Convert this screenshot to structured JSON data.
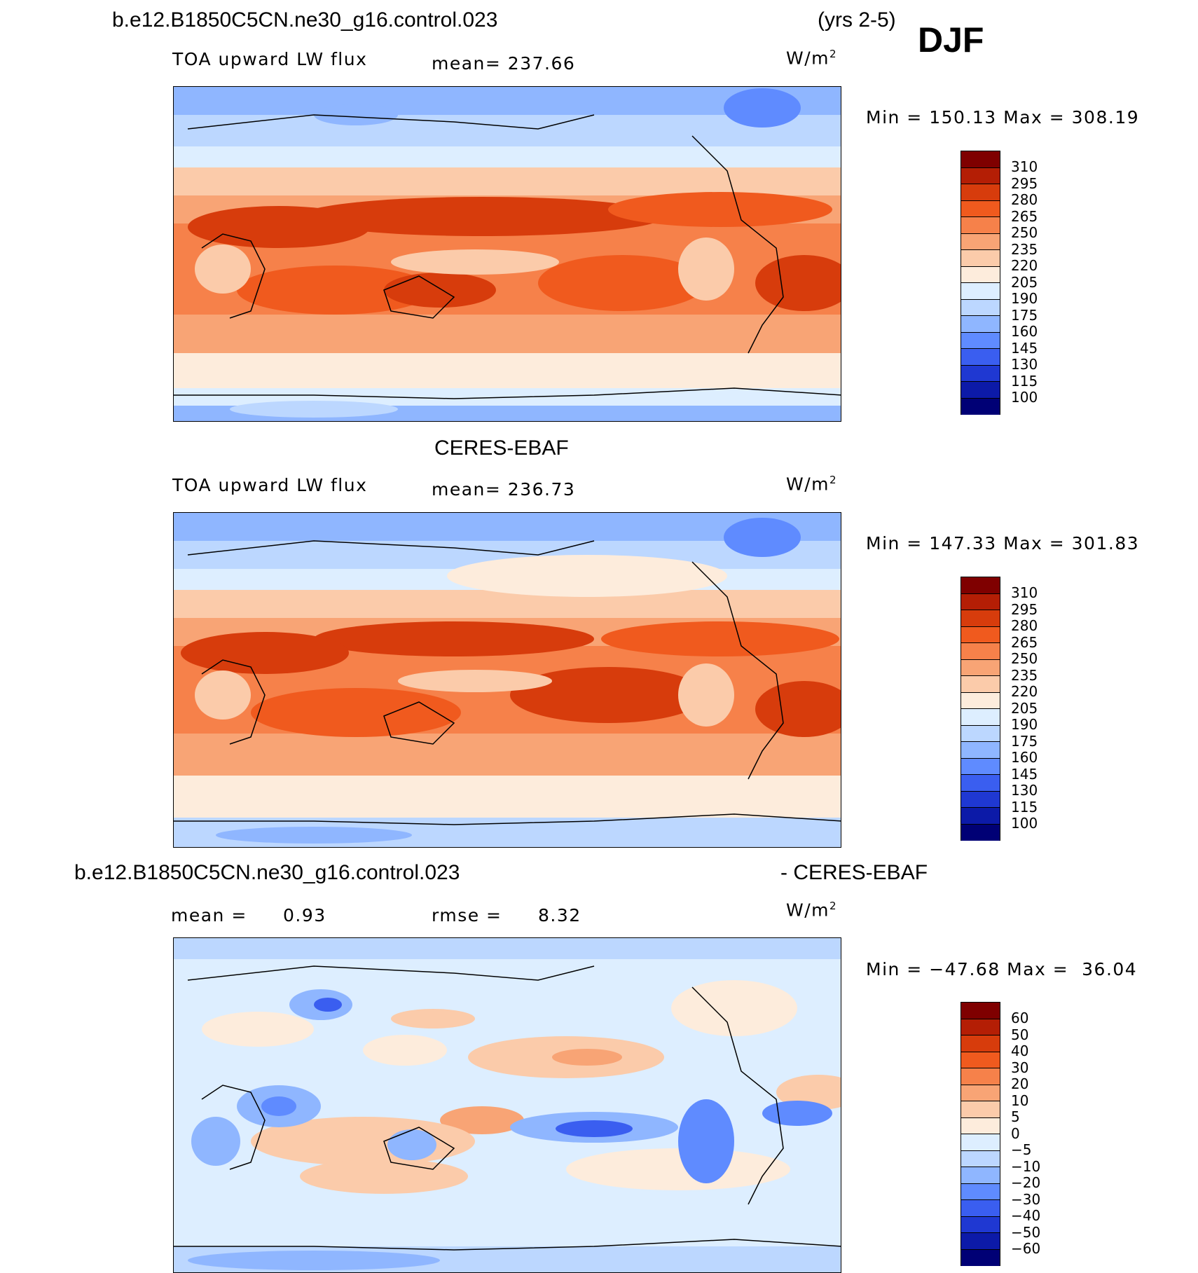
{
  "header": {
    "case_name": "b.e12.B1850C5CN.ne30_g16.control.023",
    "years": "(yrs 2-5)",
    "season": "DJF"
  },
  "panel1": {
    "variable": "TOA upward LW flux",
    "mean": "mean= 237.66",
    "units": "W/m",
    "units_sup": "2",
    "minmax": "Min = 150.13 Max = 308.19",
    "colorbar_ticks": [
      "310",
      "295",
      "280",
      "265",
      "250",
      "235",
      "220",
      "205",
      "190",
      "175",
      "160",
      "145",
      "130",
      "115",
      "100"
    ]
  },
  "panel2": {
    "title": "CERES-EBAF",
    "variable": "TOA upward LW flux",
    "mean": "mean= 236.73",
    "units": "W/m",
    "units_sup": "2",
    "minmax": "Min = 147.33 Max = 301.83",
    "colorbar_ticks": [
      "310",
      "295",
      "280",
      "265",
      "250",
      "235",
      "220",
      "205",
      "190",
      "175",
      "160",
      "145",
      "130",
      "115",
      "100"
    ]
  },
  "panel3": {
    "title_left": "b.e12.B1850C5CN.ne30_g16.control.023",
    "title_right": "- CERES-EBAF",
    "mean_label": "mean =",
    "mean_value": "0.93",
    "rmse_label": "rmse =",
    "rmse_value": "8.32",
    "units": "W/m",
    "units_sup": "2",
    "minmax": "Min = −47.68 Max =  36.04",
    "colorbar_ticks": [
      "60",
      "50",
      "40",
      "30",
      "20",
      "10",
      "5",
      "0",
      "−5",
      "−10",
      "−20",
      "−30",
      "−40",
      "−50",
      "−60"
    ]
  },
  "palettes": {
    "abs_colors": [
      "#7f0000",
      "#b41e05",
      "#d73c0c",
      "#f05a1e",
      "#f6814a",
      "#f8a475",
      "#fbcbaa",
      "#fdecdc",
      "#ddeeff",
      "#bcd7ff",
      "#8fb6ff",
      "#5f8bff",
      "#3a5ef0",
      "#1f38d2",
      "#0c1aa8",
      "#000075"
    ],
    "diff_colors": [
      "#7f0000",
      "#b41e05",
      "#d73c0c",
      "#f05a1e",
      "#f6814a",
      "#f8a475",
      "#fbcbaa",
      "#fdecdc",
      "#ddeeff",
      "#bcd7ff",
      "#8fb6ff",
      "#5f8bff",
      "#3a5ef0",
      "#1f38d2",
      "#0c1aa8",
      "#000075"
    ]
  }
}
